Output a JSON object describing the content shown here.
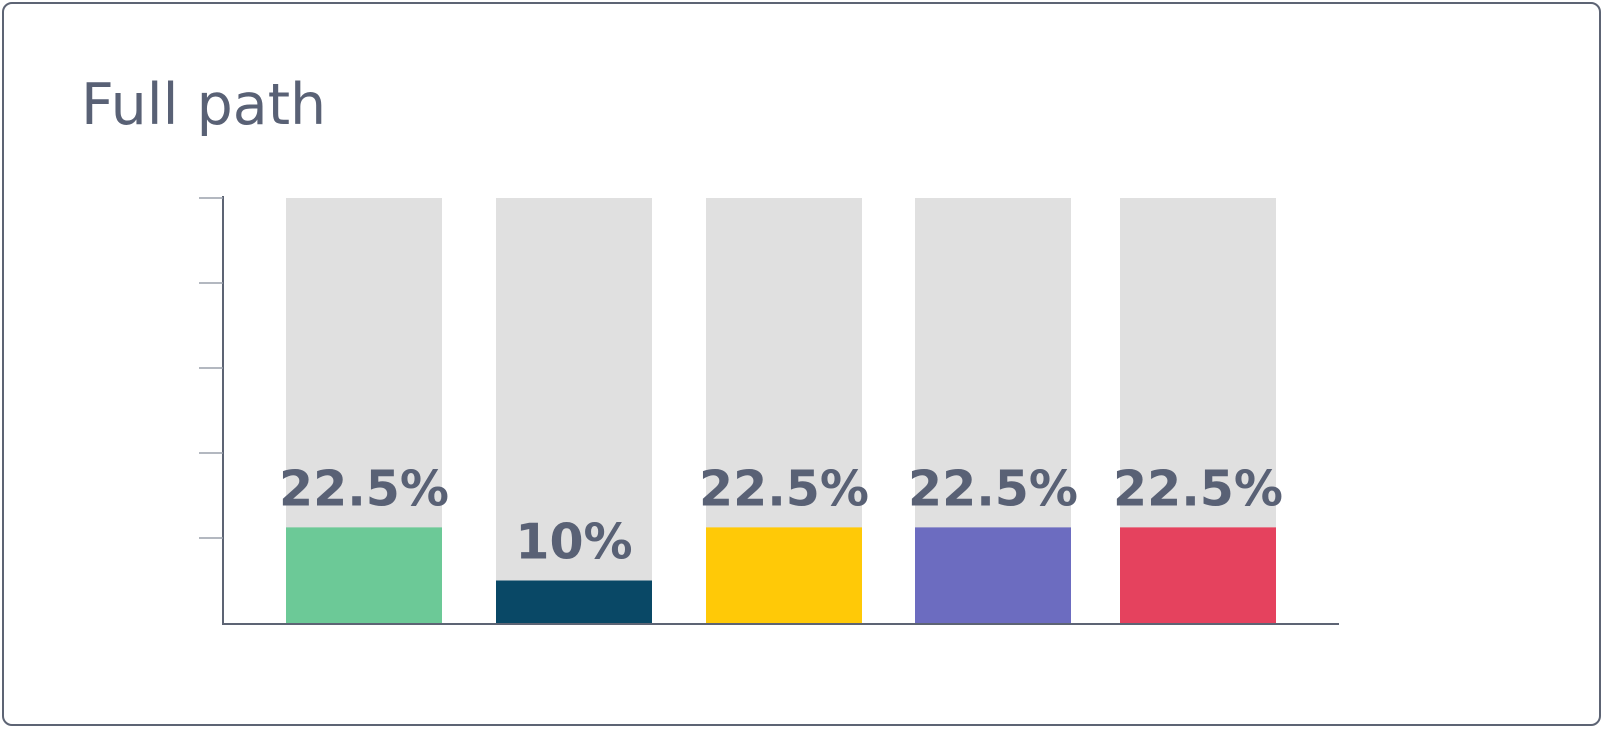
{
  "title": "Full path",
  "chart_data": {
    "type": "bar",
    "categories": [
      "",
      "",
      "",
      "",
      ""
    ],
    "values": [
      22.5,
      10,
      22.5,
      22.5,
      22.5
    ],
    "labels": [
      "22.5%",
      "10%",
      "22.5%",
      "22.5%",
      "22.5%"
    ],
    "colors": [
      "#6cc997",
      "#094866",
      "#ffc907",
      "#6c6cc0",
      "#e5425e"
    ],
    "track_color": "#e0e0e0",
    "ylim": [
      0,
      100
    ],
    "title": "Full path",
    "xlabel": "",
    "ylabel": "",
    "grid": false,
    "legend": "none"
  }
}
